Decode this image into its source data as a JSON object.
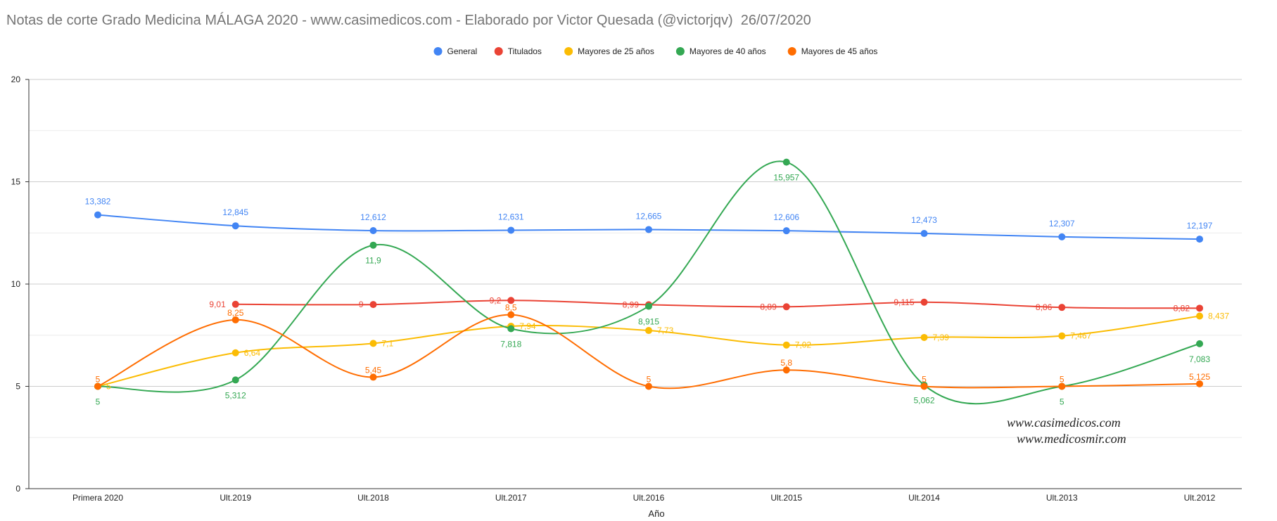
{
  "chart_data": {
    "type": "line",
    "title": "Notas de corte Grado Medicina MÁLAGA 2020 - www.casimedicos.com - Elaborado por Victor Quesada (@victorjqv)  26/07/2020",
    "xlabel": "Año",
    "ylabel": "",
    "categories": [
      "Primera 2020",
      "Ult.2019",
      "Ult.2018",
      "Ult.2017",
      "Ult.2016",
      "Ult.2015",
      "Ult.2014",
      "Ult.2013",
      "Ult.2012"
    ],
    "ylim": [
      0,
      20
    ],
    "yticks": [
      0,
      5,
      10,
      15,
      20
    ],
    "grid": true,
    "legend_position": "top",
    "series": [
      {
        "name": "General",
        "color": "#4285f4",
        "values": [
          13.382,
          12.845,
          12.612,
          12.631,
          12.665,
          12.606,
          12.473,
          12.307,
          12.197
        ],
        "labels": [
          "13,382",
          "12,845",
          "12,612",
          "12,631",
          "12,665",
          "12,606",
          "12,473",
          "12,307",
          "12,197"
        ]
      },
      {
        "name": "Titulados",
        "color": "#ea4335",
        "values": [
          null,
          9.01,
          9,
          9.2,
          8.99,
          8.89,
          9.115,
          8.86,
          8.82
        ],
        "labels": [
          null,
          "9,01",
          "9",
          "9,2",
          "8,99",
          "8,89",
          "9,115",
          "8,86",
          "8,82"
        ]
      },
      {
        "name": "Mayores de 25 años",
        "color": "#fbbc04",
        "values": [
          5,
          6.64,
          7.1,
          7.94,
          7.73,
          7.02,
          7.39,
          7.467,
          8.437
        ],
        "labels": [
          "5",
          "6,64",
          "7,1",
          "7,94",
          "7,73",
          "7,02",
          "7,39",
          "7,467",
          "8,437"
        ]
      },
      {
        "name": "Mayores de 40 años",
        "color": "#34a853",
        "values": [
          5,
          5.312,
          11.9,
          7.818,
          8.915,
          15.957,
          5.062,
          5,
          7.083
        ],
        "labels": [
          "5",
          "5,312",
          "11,9",
          "7,818",
          "8,915",
          "15,957",
          "5,062",
          "5",
          "7,083"
        ]
      },
      {
        "name": "Mayores de 45 años",
        "color": "#ff6d01",
        "values": [
          5,
          8.25,
          5.45,
          8.5,
          5,
          5.8,
          5,
          5,
          5.125
        ],
        "labels": [
          "5",
          "8,25",
          "5,45",
          "8,5",
          "5",
          "5,8",
          "5",
          "5",
          "5,125"
        ]
      }
    ],
    "watermark": [
      "www.casimedicos.com",
      "www.medicosmir.com"
    ]
  }
}
